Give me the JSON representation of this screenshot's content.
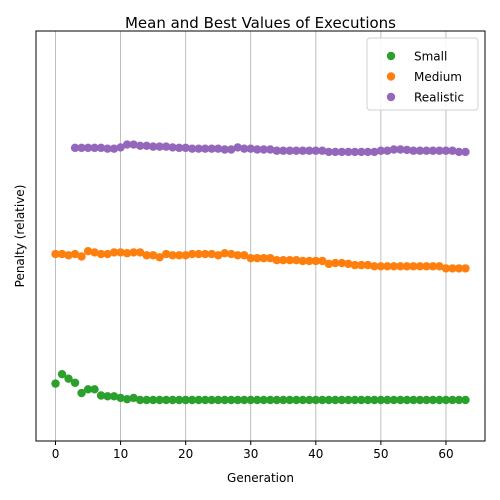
{
  "chart_data": {
    "type": "scatter",
    "title": "Mean and Best Values of Executions",
    "xlabel": "Generation",
    "ylabel": "Penalty (relative)",
    "xlim": [
      -3,
      66
    ],
    "ylim": [
      0,
      100
    ],
    "x_ticks": [
      0,
      10,
      20,
      30,
      40,
      50,
      60
    ],
    "y_ticks_shown": false,
    "grid": "vertical",
    "legend": "top-right",
    "series": [
      {
        "name": "Small",
        "color": "#2ca02c",
        "points": [
          [
            0,
            14.0
          ],
          [
            1,
            16.3
          ],
          [
            2,
            15.2
          ],
          [
            3,
            14.2
          ],
          [
            4,
            11.7
          ],
          [
            5,
            12.6
          ],
          [
            6,
            12.6
          ],
          [
            7,
            11.1
          ],
          [
            8,
            10.9
          ],
          [
            9,
            10.9
          ],
          [
            10,
            10.5
          ],
          [
            11,
            10.2
          ],
          [
            12,
            10.5
          ],
          [
            13,
            10.0
          ],
          [
            14,
            10.0
          ],
          [
            15,
            10.0
          ],
          [
            16,
            10.0
          ],
          [
            17,
            10.0
          ],
          [
            18,
            10.0
          ],
          [
            19,
            10.0
          ],
          [
            20,
            10.0
          ],
          [
            21,
            10.0
          ],
          [
            22,
            10.0
          ],
          [
            23,
            10.0
          ],
          [
            24,
            10.0
          ],
          [
            25,
            10.0
          ],
          [
            26,
            10.0
          ],
          [
            27,
            10.0
          ],
          [
            28,
            10.0
          ],
          [
            29,
            10.0
          ],
          [
            30,
            10.0
          ],
          [
            31,
            10.0
          ],
          [
            32,
            10.0
          ],
          [
            33,
            10.0
          ],
          [
            34,
            10.0
          ],
          [
            35,
            10.0
          ],
          [
            36,
            10.0
          ],
          [
            37,
            10.0
          ],
          [
            38,
            10.0
          ],
          [
            39,
            10.0
          ],
          [
            40,
            10.0
          ],
          [
            41,
            10.0
          ],
          [
            42,
            10.0
          ],
          [
            43,
            10.0
          ],
          [
            44,
            10.0
          ],
          [
            45,
            10.0
          ],
          [
            46,
            10.0
          ],
          [
            47,
            10.0
          ],
          [
            48,
            10.0
          ],
          [
            49,
            10.0
          ],
          [
            50,
            10.0
          ],
          [
            51,
            10.0
          ],
          [
            52,
            10.0
          ],
          [
            53,
            10.0
          ],
          [
            54,
            10.0
          ],
          [
            55,
            10.0
          ],
          [
            56,
            10.0
          ],
          [
            57,
            10.0
          ],
          [
            58,
            10.0
          ],
          [
            59,
            10.0
          ],
          [
            60,
            10.0
          ],
          [
            61,
            10.0
          ],
          [
            62,
            10.0
          ],
          [
            63,
            10.0
          ]
        ]
      },
      {
        "name": "Medium",
        "color": "#ff7f0e",
        "points": [
          [
            0,
            45.6
          ],
          [
            1,
            45.6
          ],
          [
            2,
            45.3
          ],
          [
            3,
            45.6
          ],
          [
            4,
            45.0
          ],
          [
            5,
            46.3
          ],
          [
            6,
            46.0
          ],
          [
            7,
            45.6
          ],
          [
            8,
            45.6
          ],
          [
            9,
            46.0
          ],
          [
            10,
            46.0
          ],
          [
            11,
            45.8
          ],
          [
            12,
            46.0
          ],
          [
            13,
            46.0
          ],
          [
            14,
            45.3
          ],
          [
            15,
            45.3
          ],
          [
            16,
            44.8
          ],
          [
            17,
            45.6
          ],
          [
            18,
            45.3
          ],
          [
            19,
            45.3
          ],
          [
            20,
            45.3
          ],
          [
            21,
            45.6
          ],
          [
            22,
            45.6
          ],
          [
            23,
            45.6
          ],
          [
            24,
            45.6
          ],
          [
            25,
            45.3
          ],
          [
            26,
            45.8
          ],
          [
            27,
            45.6
          ],
          [
            28,
            45.3
          ],
          [
            29,
            45.3
          ],
          [
            30,
            44.6
          ],
          [
            31,
            44.6
          ],
          [
            32,
            44.6
          ],
          [
            33,
            44.6
          ],
          [
            34,
            44.1
          ],
          [
            35,
            44.1
          ],
          [
            36,
            44.1
          ],
          [
            37,
            44.1
          ],
          [
            38,
            43.9
          ],
          [
            39,
            43.9
          ],
          [
            40,
            43.9
          ],
          [
            41,
            43.9
          ],
          [
            42,
            43.2
          ],
          [
            43,
            43.4
          ],
          [
            44,
            43.4
          ],
          [
            45,
            43.2
          ],
          [
            46,
            42.9
          ],
          [
            47,
            42.9
          ],
          [
            48,
            42.9
          ],
          [
            49,
            42.6
          ],
          [
            50,
            42.6
          ],
          [
            51,
            42.6
          ],
          [
            52,
            42.6
          ],
          [
            53,
            42.6
          ],
          [
            54,
            42.6
          ],
          [
            55,
            42.6
          ],
          [
            56,
            42.6
          ],
          [
            57,
            42.6
          ],
          [
            58,
            42.6
          ],
          [
            59,
            42.6
          ],
          [
            60,
            42.1
          ],
          [
            61,
            42.1
          ],
          [
            62,
            42.1
          ],
          [
            63,
            42.1
          ]
        ]
      },
      {
        "name": "Realistic",
        "color": "#9467bd",
        "points": [
          [
            3,
            71.5
          ],
          [
            4,
            71.5
          ],
          [
            5,
            71.5
          ],
          [
            6,
            71.5
          ],
          [
            7,
            71.5
          ],
          [
            8,
            71.3
          ],
          [
            9,
            71.3
          ],
          [
            10,
            71.6
          ],
          [
            11,
            72.3
          ],
          [
            12,
            72.3
          ],
          [
            13,
            72.0
          ],
          [
            14,
            72.0
          ],
          [
            15,
            71.8
          ],
          [
            16,
            71.8
          ],
          [
            17,
            71.8
          ],
          [
            18,
            71.6
          ],
          [
            19,
            71.5
          ],
          [
            20,
            71.5
          ],
          [
            21,
            71.3
          ],
          [
            22,
            71.3
          ],
          [
            23,
            71.3
          ],
          [
            24,
            71.3
          ],
          [
            25,
            71.3
          ],
          [
            26,
            71.1
          ],
          [
            27,
            71.1
          ],
          [
            28,
            71.6
          ],
          [
            29,
            71.3
          ],
          [
            30,
            71.3
          ],
          [
            31,
            71.1
          ],
          [
            32,
            71.1
          ],
          [
            33,
            71.1
          ],
          [
            34,
            70.8
          ],
          [
            35,
            70.8
          ],
          [
            36,
            70.8
          ],
          [
            37,
            70.8
          ],
          [
            38,
            70.8
          ],
          [
            39,
            70.8
          ],
          [
            40,
            70.8
          ],
          [
            41,
            70.8
          ],
          [
            42,
            70.5
          ],
          [
            43,
            70.5
          ],
          [
            44,
            70.5
          ],
          [
            45,
            70.5
          ],
          [
            46,
            70.5
          ],
          [
            47,
            70.5
          ],
          [
            48,
            70.5
          ],
          [
            49,
            70.5
          ],
          [
            50,
            70.8
          ],
          [
            51,
            70.8
          ],
          [
            52,
            71.1
          ],
          [
            53,
            71.1
          ],
          [
            54,
            71.0
          ],
          [
            55,
            70.8
          ],
          [
            56,
            70.8
          ],
          [
            57,
            70.8
          ],
          [
            58,
            70.8
          ],
          [
            59,
            70.8
          ],
          [
            60,
            70.8
          ],
          [
            61,
            70.8
          ],
          [
            62,
            70.5
          ],
          [
            63,
            70.5
          ]
        ]
      }
    ]
  }
}
